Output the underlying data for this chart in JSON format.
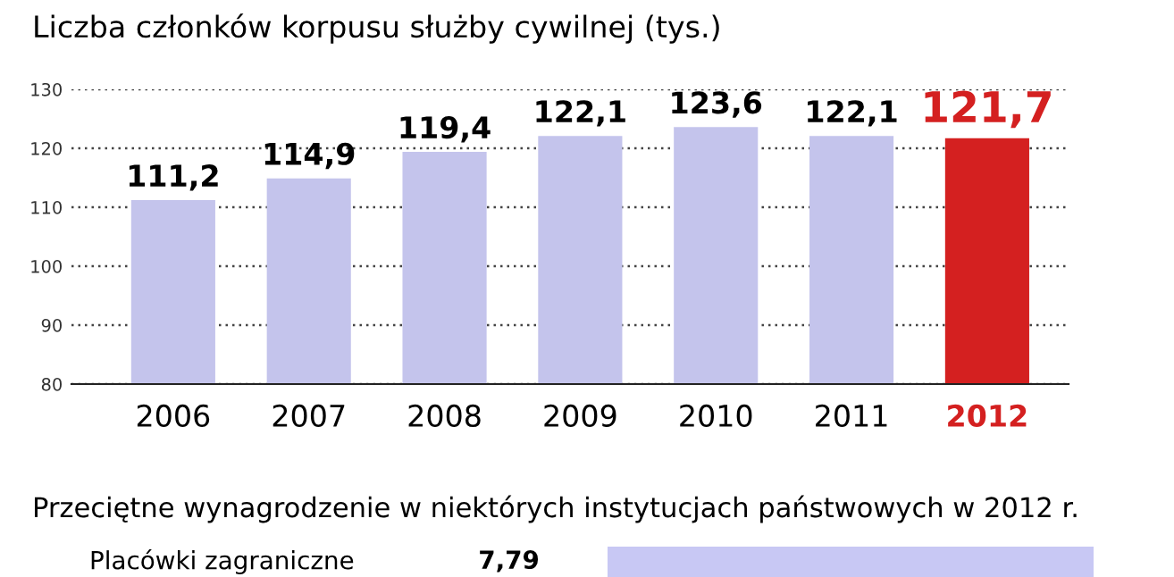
{
  "chart_data": [
    {
      "type": "bar",
      "title": "Liczba członków korpusu służby cywilnej (tys.)",
      "categories": [
        "2006",
        "2007",
        "2008",
        "2009",
        "2010",
        "2011",
        "2012"
      ],
      "values": [
        111.2,
        114.9,
        119.4,
        122.1,
        123.6,
        122.1,
        121.7
      ],
      "value_labels": [
        "111,2",
        "114,9",
        "119,4",
        "122,1",
        "123,6",
        "122,1",
        "121,7"
      ],
      "colors": [
        "#c4c4ec",
        "#c4c4ec",
        "#c4c4ec",
        "#c4c4ec",
        "#c4c4ec",
        "#c4c4ec",
        "#d42020"
      ],
      "ylim": [
        80,
        130
      ],
      "yticks": [
        80,
        90,
        100,
        110,
        120,
        130
      ],
      "grid": "y",
      "legend": false
    },
    {
      "type": "bar",
      "orientation": "horizontal",
      "title": "Przeciętne wynagrodzenie w niektórych instytucjach państwowych w 2012 r.",
      "categories": [
        "Placówki zagraniczne"
      ],
      "values": [
        7.79
      ],
      "value_labels": [
        "7,79"
      ],
      "colors": [
        "#c8c8f4"
      ],
      "grid": false,
      "legend": false
    }
  ]
}
